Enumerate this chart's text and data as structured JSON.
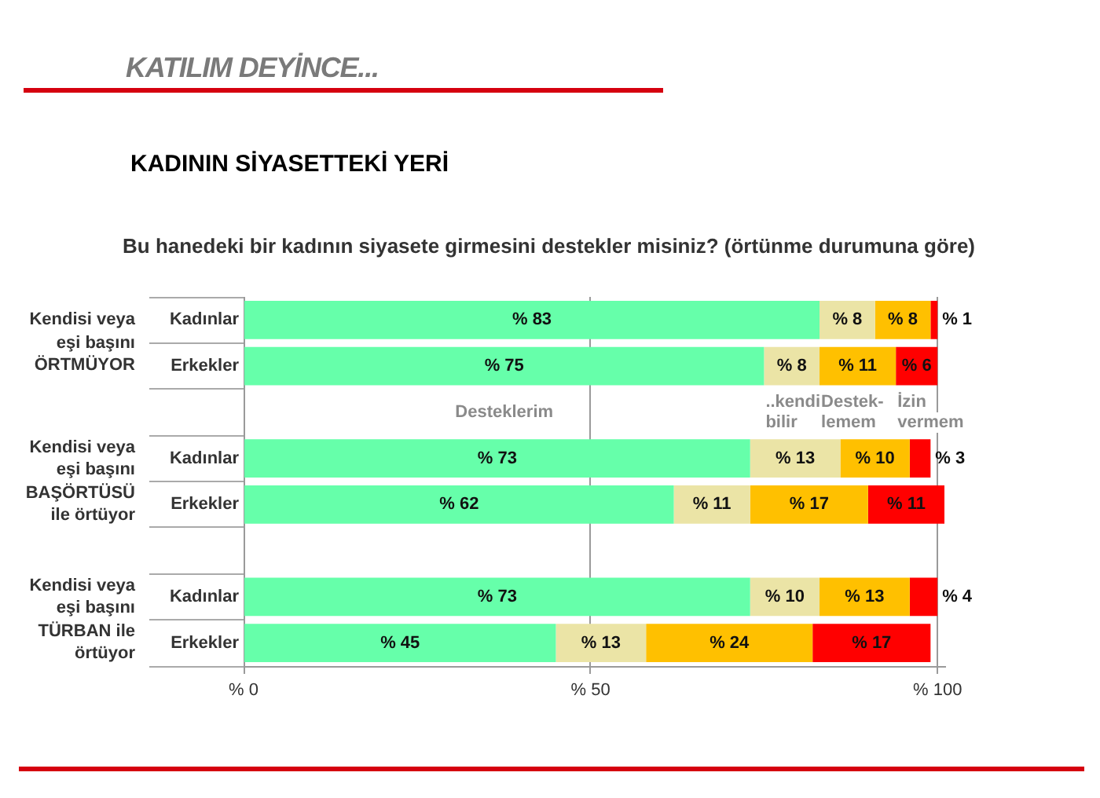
{
  "chart_data": {
    "type": "bar",
    "orientation": "horizontal",
    "stacked": true,
    "title": "KADININ SİYASETTEKİ YERİ",
    "subtitle": "Bu hanedeki bir kadının siyasete girmesini destekler misiniz? (örtünme durumuna göre)",
    "annotations": [
      "KATILIM DEYİNCE...",
      "Kendisi veya eşi başını ÖRTMÜYOR",
      "Kendisi veya eşi başını BAŞÖRTÜSÜ ile örtüyor",
      "Kendisi veya eşi başını TÜRBAN ile örtüyor"
    ],
    "categories": [
      "Kadınlar",
      "Erkekler",
      null,
      "Kadınlar",
      "Erkekler",
      null,
      "Kadınlar",
      "Erkekler"
    ],
    "series": [
      {
        "name": "Desteklerim",
        "color": "#66ffaa",
        "values": [
          83,
          75,
          null,
          73,
          62,
          null,
          73,
          45
        ],
        "value_labels": [
          "% 83",
          "% 75",
          null,
          "% 73",
          "% 62",
          null,
          "% 73",
          "% 45"
        ]
      },
      {
        "name": "..kendi bilir",
        "color": "#ebe4a6",
        "values": [
          8,
          8,
          null,
          13,
          11,
          null,
          10,
          13
        ],
        "value_labels": [
          "% 8",
          "% 8",
          null,
          "% 13",
          "% 11",
          null,
          "% 10",
          "% 13"
        ]
      },
      {
        "name": "Destek-lemem",
        "color": "#ffc000",
        "values": [
          8,
          11,
          null,
          10,
          17,
          null,
          13,
          24
        ],
        "value_labels": [
          "% 8",
          "% 11",
          null,
          "% 10",
          "% 17",
          null,
          "% 13",
          "% 24"
        ]
      },
      {
        "name": "İzin vermem",
        "color": "#ff0000",
        "values": [
          1,
          6,
          null,
          3,
          11,
          null,
          4,
          17
        ],
        "value_labels": [
          "% 1",
          "% 6",
          null,
          "% 3",
          "% 11",
          null,
          "% 4",
          "% 17"
        ]
      }
    ],
    "xlim": [
      0,
      101
    ],
    "xticks": [
      {
        "value": 0,
        "label": "% 0"
      },
      {
        "value": 50,
        "label": "% 50"
      },
      {
        "value": 100,
        "label": "% 100"
      }
    ],
    "grid": "x"
  }
}
